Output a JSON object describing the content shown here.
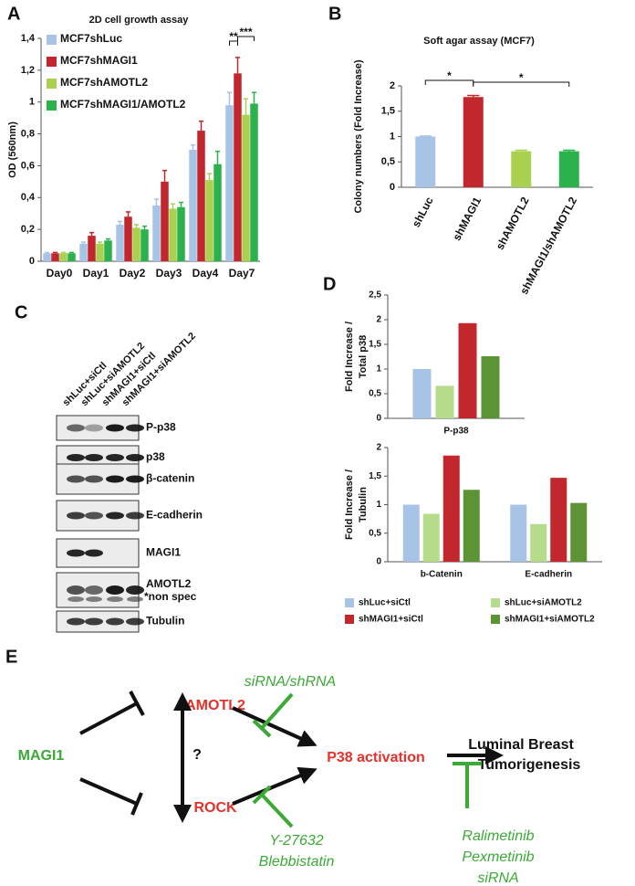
{
  "panel_labels": [
    "A",
    "B",
    "C",
    "D",
    "E"
  ],
  "chart_data": [
    {
      "type": "bar",
      "title": "2D cell growth assay",
      "ylabel": [
        "OD (560nm)"
      ],
      "categories": [
        "Day0",
        "Day1",
        "Day2",
        "Day3",
        "Day4",
        "Day7"
      ],
      "series": [
        {
          "name": "MCF7shLuc",
          "color": "#a7c3e6",
          "values": [
            0.05,
            0.11,
            0.23,
            0.35,
            0.7,
            0.98
          ],
          "errors": [
            0.005,
            0.01,
            0.02,
            0.04,
            0.03,
            0.08
          ]
        },
        {
          "name": "MCF7shMAGI1",
          "color": "#c1272d",
          "values": [
            0.05,
            0.16,
            0.28,
            0.5,
            0.82,
            1.18
          ],
          "errors": [
            0.005,
            0.02,
            0.03,
            0.07,
            0.06,
            0.1
          ]
        },
        {
          "name": "MCF7shAMOTL2",
          "color": "#a9d04f",
          "values": [
            0.05,
            0.11,
            0.21,
            0.33,
            0.51,
            0.92
          ],
          "errors": [
            0.005,
            0.01,
            0.02,
            0.03,
            0.04,
            0.1
          ]
        },
        {
          "name": "MCF7shMAGI1/AMOTL2",
          "color": "#2bb24c",
          "values": [
            0.05,
            0.13,
            0.2,
            0.34,
            0.61,
            0.99
          ],
          "errors": [
            0.005,
            0.01,
            0.02,
            0.03,
            0.08,
            0.07
          ]
        }
      ],
      "ylim": [
        0,
        1.4
      ],
      "yticks": [
        0,
        {
          "value": 0.2,
          "label": "0,2"
        },
        {
          "value": 0.4,
          "label": "0,4"
        },
        {
          "value": 0.6,
          "label": "0,6"
        },
        {
          "value": 0.8,
          "label": "0,8"
        },
        1,
        {
          "value": 1.2,
          "label": "1,2"
        },
        {
          "value": 1.4,
          "label": "1,4"
        }
      ],
      "annotations": [
        "**",
        "***"
      ]
    },
    {
      "type": "bar",
      "title": "Soft agar assay (MCF7)",
      "ylabel": [
        "Colony numbers (Fold Increase)"
      ],
      "categories": [
        "shLuc",
        "shMAGI1",
        "shAMOTL2",
        "shMAGI1/shAMOTL2"
      ],
      "values": [
        1,
        1.78,
        0.71,
        0.71
      ],
      "errors": [
        0.01,
        0.03,
        0.02,
        0.02
      ],
      "colors": [
        "#a7c3e6",
        "#c1272d",
        "#a9d04f",
        "#2bb24c"
      ],
      "ylim": [
        0,
        2
      ],
      "yticks": [
        0,
        {
          "value": 0.5,
          "label": "0,5"
        },
        1,
        {
          "value": 1.5,
          "label": "1,5"
        },
        2
      ],
      "annotations": [
        "*",
        "*"
      ]
    },
    {
      "type": "bar",
      "ylabel": [
        "Fold Increase /",
        "Total p38"
      ],
      "categories": [
        "P-p38"
      ],
      "series": [
        {
          "color": "#a7c3e6",
          "values": [
            1
          ]
        },
        {
          "color": "#b5dc8a",
          "values": [
            0.66
          ]
        },
        {
          "color": "#c1272d",
          "values": [
            1.93
          ]
        },
        {
          "color": "#5b9335",
          "values": [
            1.26
          ]
        }
      ],
      "ylim": [
        0,
        2.5
      ],
      "yticks": [
        0,
        {
          "value": 0.5,
          "label": "0,5"
        },
        1,
        {
          "value": 1.5,
          "label": "1,5"
        },
        2,
        {
          "value": 2.5,
          "label": "2,5"
        }
      ]
    },
    {
      "type": "bar",
      "ylabel": [
        "Fold Increase /",
        "Tubulin"
      ],
      "categories": [
        "b-Catenin",
        "E-cadherin"
      ],
      "series": [
        {
          "name": "shLuc+siCtl",
          "color": "#a7c3e6",
          "values": [
            1,
            1
          ]
        },
        {
          "name": "shLuc+siAMOTL2",
          "color": "#b5dc8a",
          "values": [
            0.84,
            0.66
          ]
        },
        {
          "name": "shMAGI1+siCtl",
          "color": "#c1272d",
          "values": [
            1.86,
            1.47
          ]
        },
        {
          "name": "shMAGI1+siAMOTL2",
          "color": "#5b9335",
          "values": [
            1.26,
            1.03
          ]
        }
      ],
      "ylim": [
        0,
        2
      ],
      "yticks": [
        0,
        {
          "value": 0.5,
          "label": "0,5"
        },
        1,
        {
          "value": 1.5,
          "label": "1,5"
        },
        2
      ]
    }
  ],
  "blot": {
    "lanes": [
      "shLuc+siCtl",
      "shLuc+siAMOTL2",
      "shMAGI1+siCtl",
      "shMAGI1+siAMOTL2"
    ],
    "rows": [
      "P-p38",
      "p38",
      "β-catenin",
      "E-cadherin",
      "MAGI1",
      "AMOTL2",
      "Tubulin"
    ],
    "note": "*non spec"
  },
  "diagram": {
    "nodes": [
      "MAGI1",
      "AMOTL2",
      "ROCK",
      "P38 activation",
      "?"
    ],
    "outcome": [
      "Luminal Breast",
      "Tumorigenesis"
    ],
    "inhibitors": [
      [
        "siRNA/shRNA"
      ],
      [
        "Y-27632",
        "Blebbistatin"
      ],
      [
        "Ralimetinib",
        "Pexmetinib",
        "siRNA"
      ]
    ]
  }
}
